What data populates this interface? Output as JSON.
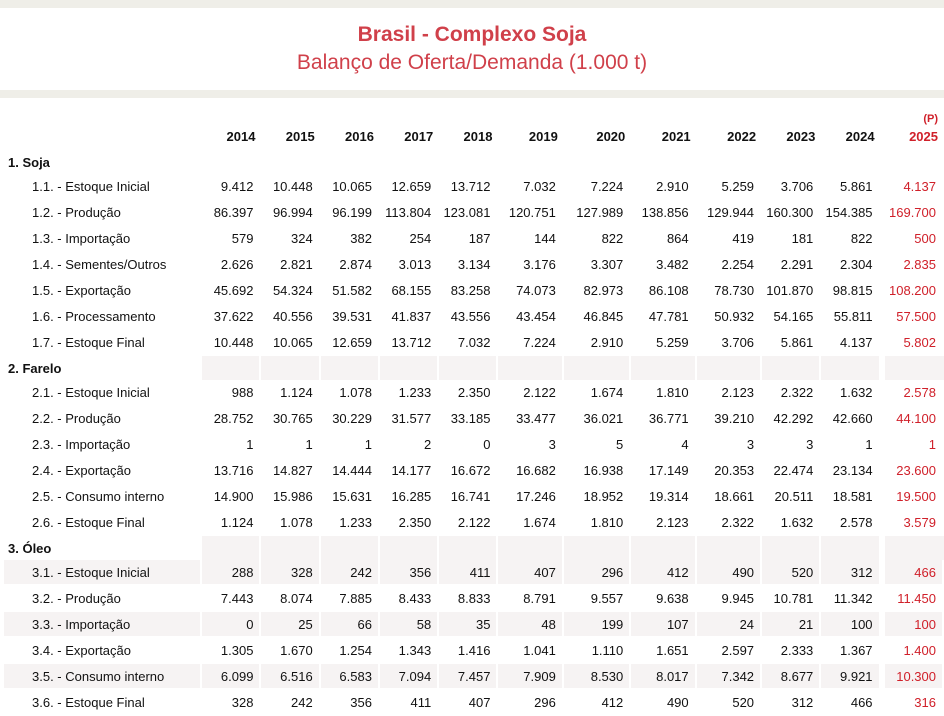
{
  "title": "Brasil - Complexo Soja",
  "subtitle": "Balanço de Oferta/Demanda  (1.000 t)",
  "years": [
    "2014",
    "2015",
    "2016",
    "2017",
    "2018",
    "2019",
    "2020",
    "2021",
    "2022",
    "2023",
    "2024"
  ],
  "projection_year": "2025",
  "projection_mark": "(P)",
  "sections": [
    {
      "title": "1. Soja",
      "rows": [
        {
          "label": "1.1. - Estoque Inicial",
          "values": [
            "9.412",
            "10.448",
            "10.065",
            "12.659",
            "13.712",
            "7.032",
            "7.224",
            "2.910",
            "5.259",
            "3.706",
            "5.861"
          ],
          "proj": "4.137"
        },
        {
          "label": "1.2. - Produção",
          "values": [
            "86.397",
            "96.994",
            "96.199",
            "113.804",
            "123.081",
            "120.751",
            "127.989",
            "138.856",
            "129.944",
            "160.300",
            "154.385"
          ],
          "proj": "169.700"
        },
        {
          "label": "1.3. - Importação",
          "values": [
            "579",
            "324",
            "382",
            "254",
            "187",
            "144",
            "822",
            "864",
            "419",
            "181",
            "822"
          ],
          "proj": "500"
        },
        {
          "label": "1.4. - Sementes/Outros",
          "values": [
            "2.626",
            "2.821",
            "2.874",
            "3.013",
            "3.134",
            "3.176",
            "3.307",
            "3.482",
            "2.254",
            "2.291",
            "2.304"
          ],
          "proj": "2.835"
        },
        {
          "label": "1.5. - Exportação",
          "values": [
            "45.692",
            "54.324",
            "51.582",
            "68.155",
            "83.258",
            "74.073",
            "82.973",
            "86.108",
            "78.730",
            "101.870",
            "98.815"
          ],
          "proj": "108.200"
        },
        {
          "label": "1.6. - Processamento",
          "values": [
            "37.622",
            "40.556",
            "39.531",
            "41.837",
            "43.556",
            "43.454",
            "46.845",
            "47.781",
            "50.932",
            "54.165",
            "55.811"
          ],
          "proj": "57.500"
        },
        {
          "label": "1.7. - Estoque Final",
          "values": [
            "10.448",
            "10.065",
            "12.659",
            "13.712",
            "7.032",
            "7.224",
            "2.910",
            "5.259",
            "3.706",
            "5.861",
            "4.137"
          ],
          "proj": "5.802"
        }
      ]
    },
    {
      "title": "2. Farelo",
      "rows": [
        {
          "label": "2.1. - Estoque Inicial",
          "values": [
            "988",
            "1.124",
            "1.078",
            "1.233",
            "2.350",
            "2.122",
            "1.674",
            "1.810",
            "2.123",
            "2.322",
            "1.632"
          ],
          "proj": "2.578"
        },
        {
          "label": "2.2. - Produção",
          "values": [
            "28.752",
            "30.765",
            "30.229",
            "31.577",
            "33.185",
            "33.477",
            "36.021",
            "36.771",
            "39.210",
            "42.292",
            "42.660"
          ],
          "proj": "44.100"
        },
        {
          "label": "2.3. - Importação",
          "values": [
            "1",
            "1",
            "1",
            "2",
            "0",
            "3",
            "5",
            "4",
            "3",
            "3",
            "1"
          ],
          "proj": "1"
        },
        {
          "label": "2.4. - Exportação",
          "values": [
            "13.716",
            "14.827",
            "14.444",
            "14.177",
            "16.672",
            "16.682",
            "16.938",
            "17.149",
            "20.353",
            "22.474",
            "23.134"
          ],
          "proj": "23.600"
        },
        {
          "label": "2.5. - Consumo interno",
          "values": [
            "14.900",
            "15.986",
            "15.631",
            "16.285",
            "16.741",
            "17.246",
            "18.952",
            "19.314",
            "18.661",
            "20.511",
            "18.581"
          ],
          "proj": "19.500"
        },
        {
          "label": "2.6. - Estoque Final",
          "values": [
            "1.124",
            "1.078",
            "1.233",
            "2.350",
            "2.122",
            "1.674",
            "1.810",
            "2.123",
            "2.322",
            "1.632",
            "2.578"
          ],
          "proj": "3.579"
        }
      ]
    },
    {
      "title": "3. Óleo",
      "rows": [
        {
          "label": "3.1. - Estoque Inicial",
          "values": [
            "288",
            "328",
            "242",
            "356",
            "411",
            "407",
            "296",
            "412",
            "490",
            "520",
            "312"
          ],
          "proj": "466"
        },
        {
          "label": "3.2. - Produção",
          "values": [
            "7.443",
            "8.074",
            "7.885",
            "8.433",
            "8.833",
            "8.791",
            "9.557",
            "9.638",
            "9.945",
            "10.781",
            "11.342"
          ],
          "proj": "11.450"
        },
        {
          "label": "3.3. - Importação",
          "values": [
            "0",
            "25",
            "66",
            "58",
            "35",
            "48",
            "199",
            "107",
            "24",
            "21",
            "100"
          ],
          "proj": "100"
        },
        {
          "label": "3.4. - Exportação",
          "values": [
            "1.305",
            "1.670",
            "1.254",
            "1.343",
            "1.416",
            "1.041",
            "1.110",
            "1.651",
            "2.597",
            "2.333",
            "1.367"
          ],
          "proj": "1.400"
        },
        {
          "label": "3.5. - Consumo interno",
          "values": [
            "6.099",
            "6.516",
            "6.583",
            "7.094",
            "7.457",
            "7.909",
            "8.530",
            "8.017",
            "7.342",
            "8.677",
            "9.921"
          ],
          "proj": "10.300"
        },
        {
          "label": "3.6. - Estoque Final",
          "values": [
            "328",
            "242",
            "356",
            "411",
            "407",
            "296",
            "412",
            "490",
            "520",
            "312",
            "466"
          ],
          "proj": "316"
        }
      ]
    }
  ],
  "colors": {
    "accent": "#d0404a",
    "projection": "#d0202a",
    "row_shade": "#f6f3f3",
    "band": "#efeee8"
  }
}
